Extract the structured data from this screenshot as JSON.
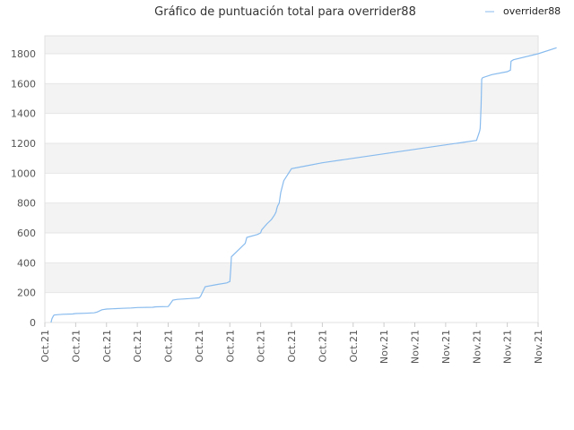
{
  "chart_data": {
    "type": "line",
    "title": "Gráfico de puntuación total para overrider88",
    "legend_position": "top-right",
    "grid": true,
    "band_colors": [
      "#f3f3f3",
      "#ffffff"
    ],
    "ylim": [
      0,
      1920
    ],
    "y_ticks": [
      0,
      200,
      400,
      600,
      800,
      1000,
      1200,
      1400,
      1600,
      1800
    ],
    "y_tick_labels": [
      "0",
      "200",
      "400",
      "600",
      "800",
      "1000",
      "1200",
      "1400",
      "1600",
      "1800"
    ],
    "x_tick_labels": [
      "Oct.21",
      "Oct.21",
      "Oct.21",
      "Oct.21",
      "Oct.21",
      "Oct.21",
      "Oct.21",
      "Oct.21",
      "Oct.21",
      "Oct.21",
      "Oct.21",
      "Nov.21",
      "Nov.21",
      "Nov.21",
      "Nov.21",
      "Nov.21",
      "Nov.21"
    ],
    "series": [
      {
        "name": "overrider88",
        "color": "#88bbee",
        "x": [
          0.2,
          0.23,
          0.28,
          0.3,
          0.4,
          0.6,
          0.9,
          1.0,
          1.3,
          1.6,
          1.7,
          1.85,
          2.0,
          2.2,
          2.5,
          2.8,
          3.0,
          3.5,
          3.6,
          4.0,
          4.05,
          4.15,
          4.3,
          4.7,
          5.0,
          5.05,
          5.2,
          5.6,
          5.9,
          6.0,
          6.03,
          6.05,
          6.5,
          6.55,
          6.9,
          7.0,
          7.03,
          7.2,
          7.35,
          7.45,
          7.5,
          7.52,
          7.55,
          7.6,
          7.65,
          7.75,
          8.0,
          8.5,
          9.0,
          10.0,
          11.0,
          12.0,
          14.0,
          14.1,
          14.12,
          14.15,
          14.17,
          14.2,
          14.5,
          15.0,
          15.1,
          15.12,
          15.2,
          16.0,
          16.6
        ],
        "y": [
          0,
          25,
          45,
          50,
          52,
          55,
          57,
          60,
          62,
          65,
          70,
          85,
          90,
          92,
          95,
          97,
          100,
          102,
          105,
          107,
          120,
          150,
          155,
          160,
          165,
          175,
          240,
          255,
          265,
          275,
          360,
          440,
          530,
          570,
          590,
          600,
          620,
          660,
          690,
          720,
          740,
          760,
          780,
          800,
          870,
          950,
          1030,
          1050,
          1070,
          1100,
          1130,
          1160,
          1220,
          1280,
          1300,
          1450,
          1630,
          1640,
          1660,
          1680,
          1690,
          1750,
          1760,
          1800,
          1840
        ]
      }
    ]
  }
}
